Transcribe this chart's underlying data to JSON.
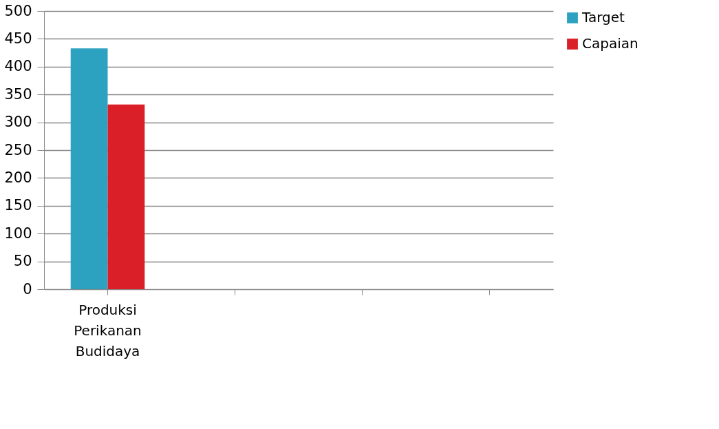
{
  "chart_data": {
    "type": "bar",
    "categories": [
      "Produksi Perikanan Budidaya",
      null,
      null,
      null
    ],
    "series": [
      {
        "name": "Target",
        "color": "#2ca2c0",
        "values": [
          433,
          null,
          null,
          null
        ]
      },
      {
        "name": "Capaian",
        "color": "#da1f28",
        "values": [
          332,
          null,
          null,
          null
        ]
      }
    ],
    "ylim": [
      0,
      500
    ],
    "yticks": [
      0,
      50,
      100,
      150,
      200,
      250,
      300,
      350,
      400,
      450,
      500
    ],
    "grid": "y",
    "legend": "right"
  }
}
